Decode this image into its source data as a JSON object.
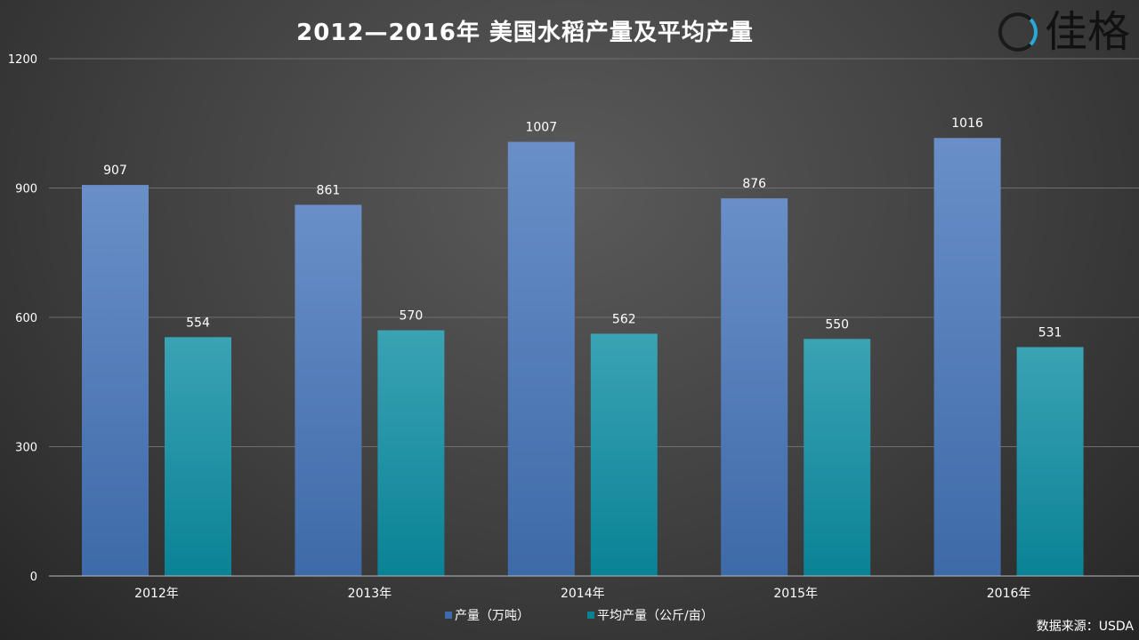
{
  "title": "2012—2016年 美国水稻产量及平均产量",
  "logo": {
    "text": "佳格",
    "ring_accent": "#2aa9d6"
  },
  "source": "数据来源：USDA",
  "chart_data": {
    "type": "bar",
    "title": "2012—2016年 美国水稻产量及平均产量",
    "categories": [
      "2012年",
      "2013年",
      "2014年",
      "2015年",
      "2016年"
    ],
    "series": [
      {
        "name": "产量（万吨）",
        "values": [
          907,
          861,
          1007,
          876,
          1016
        ],
        "color_top": "#6a8fc8",
        "color_bottom": "#3d6aa8"
      },
      {
        "name": "平均产量（公斤/亩）",
        "values": [
          554,
          570,
          562,
          550,
          531
        ],
        "color_top": "#3aa3b4",
        "color_bottom": "#0a8296"
      }
    ],
    "ylim": [
      0,
      1200
    ],
    "yticks": [
      0,
      300,
      600,
      900,
      1200
    ],
    "grid": true,
    "legend_position": "bottom-center",
    "data_labels": true
  }
}
